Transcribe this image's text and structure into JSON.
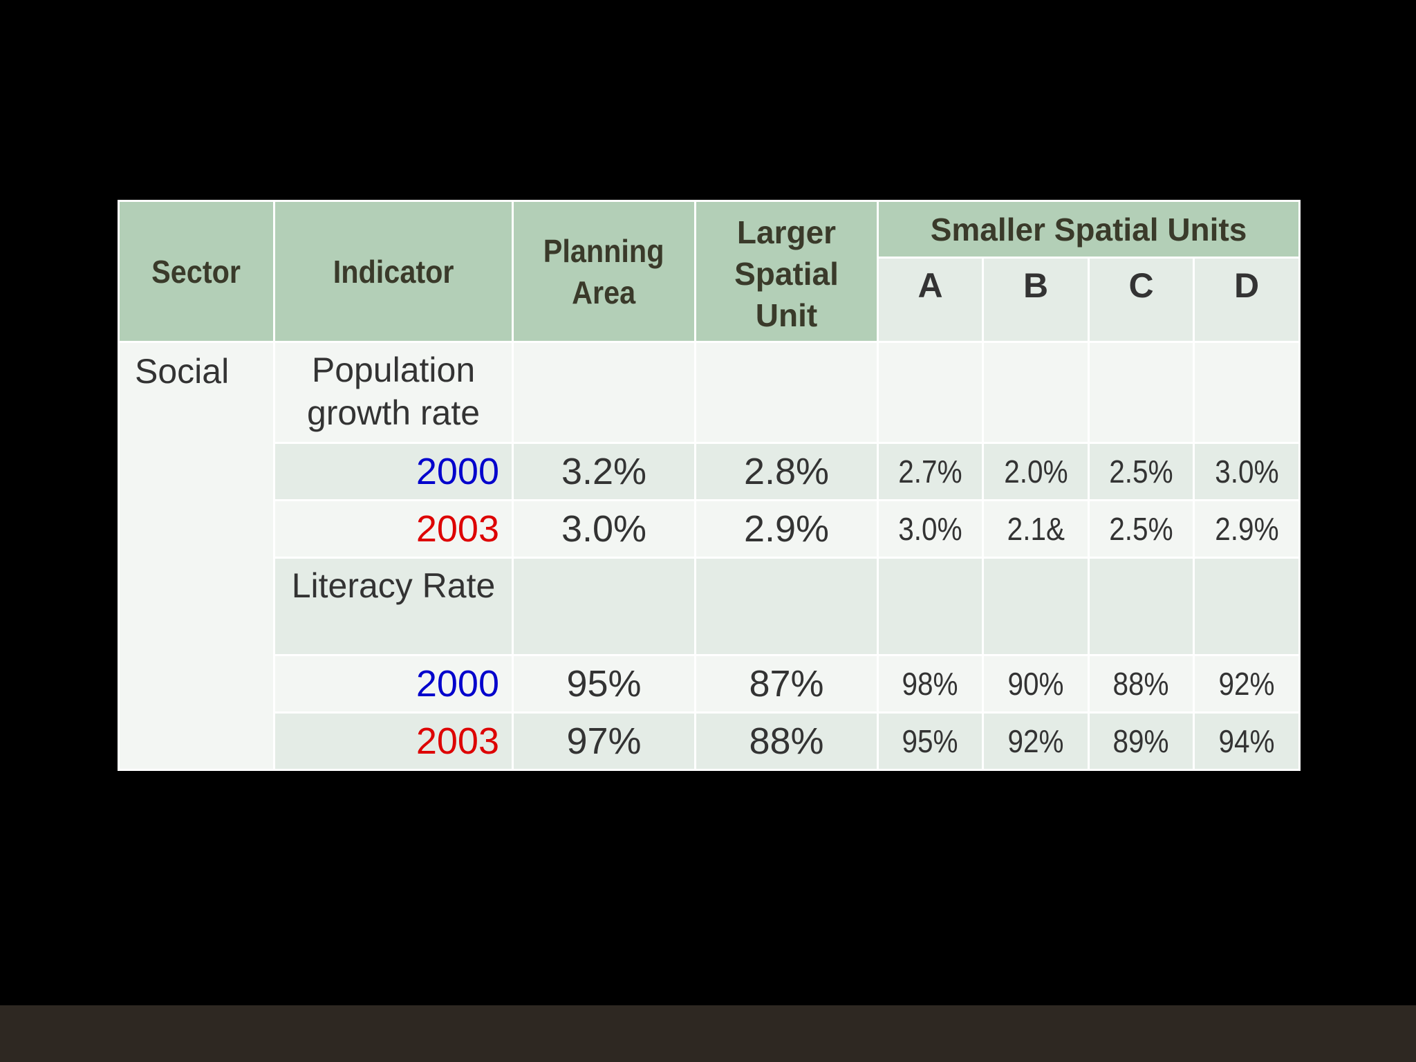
{
  "table": {
    "headers": {
      "sector": "Sector",
      "indicator": "Indicator",
      "planning_area": [
        "Planning",
        "Area"
      ],
      "larger_spatial_unit": [
        "Larger",
        "Spatial",
        "Unit"
      ],
      "smaller_spatial_units": "Smaller Spatial Units",
      "sub_units": [
        "A",
        "B",
        "C",
        "D"
      ]
    },
    "sector": "Social",
    "indicators": [
      {
        "label_lines": [
          "Population",
          "growth rate"
        ],
        "rows": [
          {
            "year": "2000",
            "year_color": "#0000cc",
            "planning_area": "3.2%",
            "larger_spatial_unit": "2.8%",
            "units": [
              "2.7%",
              "2.0%",
              "2.5%",
              "3.0%"
            ]
          },
          {
            "year": "2003",
            "year_color": "#dd0000",
            "planning_area": "3.0%",
            "larger_spatial_unit": "2.9%",
            "units": [
              "3.0%",
              "2.1&",
              "2.5%",
              "2.9%"
            ]
          }
        ]
      },
      {
        "label_lines": [
          "Literacy Rate"
        ],
        "rows": [
          {
            "year": "2000",
            "year_color": "#0000cc",
            "planning_area": "95%",
            "larger_spatial_unit": "87%",
            "units": [
              "98%",
              "90%",
              "88%",
              "92%"
            ]
          },
          {
            "year": "2003",
            "year_color": "#dd0000",
            "planning_area": "97%",
            "larger_spatial_unit": "88%",
            "units": [
              "95%",
              "92%",
              "89%",
              "94%"
            ]
          }
        ]
      }
    ]
  }
}
